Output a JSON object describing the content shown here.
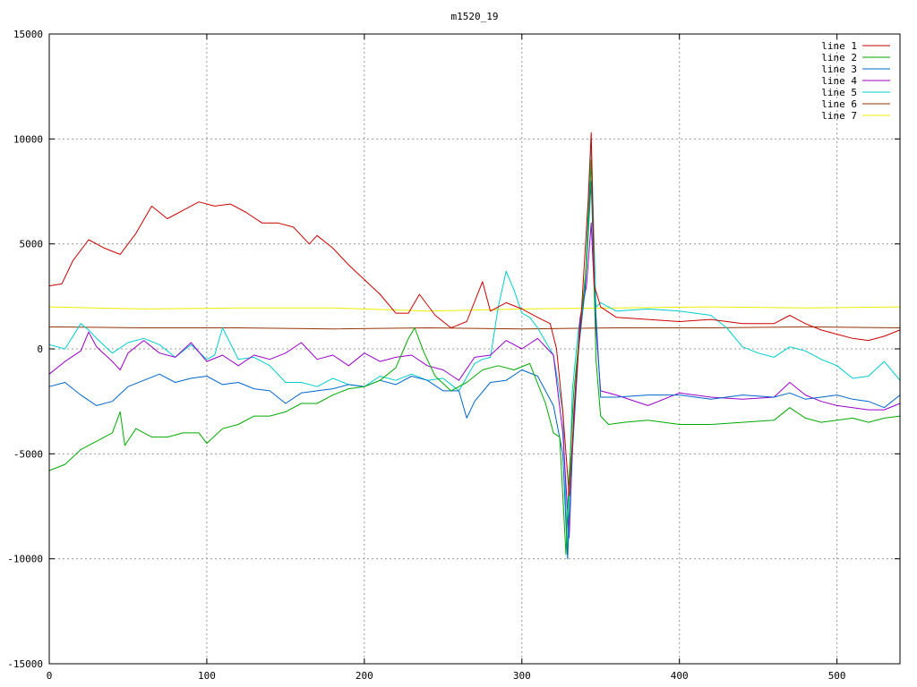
{
  "chart_data": {
    "type": "line",
    "title": "m1520_19",
    "xlabel": "",
    "ylabel": "",
    "xlim": [
      0,
      540
    ],
    "ylim": [
      -15000,
      15000
    ],
    "x_ticks": [
      0,
      100,
      200,
      300,
      400,
      500
    ],
    "y_ticks": [
      -15000,
      -10000,
      -5000,
      0,
      5000,
      10000,
      15000
    ],
    "x_tick_labels": [
      "0",
      "100",
      "200",
      "300",
      "400",
      "500"
    ],
    "y_tick_labels": [
      "-15000",
      "-10000",
      "-5000",
      "0",
      "5000",
      "10000",
      "15000"
    ],
    "grid": true,
    "legend_position": "top-right",
    "series": [
      {
        "name": "line 1",
        "color": "#cc0000",
        "x": [
          0,
          8,
          15,
          25,
          35,
          45,
          55,
          65,
          75,
          85,
          95,
          105,
          115,
          125,
          135,
          145,
          155,
          165,
          170,
          180,
          190,
          200,
          210,
          220,
          228,
          235,
          245,
          255,
          265,
          275,
          280,
          290,
          300,
          310,
          318,
          322,
          326,
          330,
          334,
          338,
          342,
          344,
          346,
          350,
          360,
          380,
          400,
          420,
          440,
          460,
          470,
          480,
          490,
          500,
          510,
          520,
          530,
          540
        ],
        "y": [
          3000,
          3100,
          4200,
          5200,
          4800,
          4500,
          5500,
          6800,
          6200,
          6600,
          7000,
          6800,
          6900,
          6500,
          6000,
          6000,
          5800,
          5000,
          5400,
          4800,
          4000,
          3300,
          2600,
          1700,
          1700,
          2600,
          1600,
          1000,
          1300,
          3200,
          1800,
          2200,
          1900,
          1500,
          1200,
          0,
          -3000,
          -7000,
          -2000,
          2000,
          7000,
          10300,
          3000,
          2000,
          1500,
          1400,
          1300,
          1400,
          1200,
          1200,
          1600,
          1200,
          900,
          700,
          500,
          400,
          600,
          900
        ]
      },
      {
        "name": "line 2",
        "color": "#00aa00",
        "x": [
          0,
          10,
          20,
          30,
          40,
          45,
          48,
          55,
          65,
          75,
          85,
          95,
          100,
          110,
          120,
          130,
          140,
          150,
          160,
          170,
          180,
          190,
          200,
          210,
          220,
          228,
          232,
          238,
          245,
          255,
          265,
          275,
          285,
          295,
          305,
          315,
          320,
          324,
          328,
          330,
          333,
          337,
          341,
          344,
          347,
          350,
          355,
          365,
          380,
          400,
          420,
          440,
          460,
          470,
          480,
          490,
          500,
          510,
          520,
          530,
          540
        ],
        "y": [
          -5800,
          -5500,
          -4800,
          -4400,
          -4000,
          -3000,
          -4600,
          -3800,
          -4200,
          -4200,
          -4000,
          -4000,
          -4500,
          -3800,
          -3600,
          -3200,
          -3200,
          -3000,
          -2600,
          -2600,
          -2200,
          -1900,
          -1800,
          -1500,
          -900,
          500,
          1000,
          -200,
          -1300,
          -2000,
          -1600,
          -1000,
          -800,
          -1000,
          -700,
          -2600,
          -4000,
          -4200,
          -9800,
          -6000,
          -2000,
          1000,
          4000,
          9000,
          -500,
          -3200,
          -3600,
          -3500,
          -3400,
          -3600,
          -3600,
          -3500,
          -3400,
          -2800,
          -3300,
          -3500,
          -3400,
          -3300,
          -3500,
          -3300,
          -3200
        ]
      },
      {
        "name": "line 3",
        "color": "#0066cc",
        "x": [
          0,
          10,
          20,
          30,
          40,
          50,
          60,
          70,
          80,
          90,
          100,
          110,
          120,
          130,
          140,
          150,
          160,
          170,
          180,
          190,
          200,
          210,
          220,
          230,
          240,
          250,
          260,
          265,
          270,
          280,
          290,
          300,
          310,
          320,
          326,
          329,
          332,
          336,
          340,
          344,
          346,
          350,
          360,
          380,
          400,
          420,
          440,
          460,
          470,
          480,
          490,
          500,
          510,
          520,
          530,
          540
        ],
        "y": [
          -1800,
          -1600,
          -2200,
          -2700,
          -2500,
          -1800,
          -1500,
          -1200,
          -1600,
          -1400,
          -1300,
          -1700,
          -1600,
          -1900,
          -2000,
          -2600,
          -2100,
          -2000,
          -1900,
          -1700,
          -1800,
          -1500,
          -1700,
          -1300,
          -1500,
          -2000,
          -2000,
          -3300,
          -2500,
          -1600,
          -1500,
          -1000,
          -1300,
          -2700,
          -5000,
          -10000,
          -5000,
          0,
          2700,
          8000,
          3000,
          -2300,
          -2300,
          -2200,
          -2200,
          -2400,
          -2200,
          -2300,
          -2100,
          -2400,
          -2300,
          -2200,
          -2400,
          -2500,
          -2800,
          -2200
        ]
      },
      {
        "name": "line 4",
        "color": "#9900cc",
        "x": [
          0,
          10,
          20,
          25,
          30,
          40,
          45,
          50,
          60,
          70,
          80,
          90,
          100,
          110,
          120,
          130,
          140,
          150,
          160,
          170,
          180,
          190,
          200,
          210,
          220,
          230,
          240,
          250,
          260,
          270,
          280,
          290,
          300,
          310,
          320,
          326,
          330,
          333,
          337,
          341,
          344,
          347,
          350,
          360,
          380,
          400,
          420,
          440,
          460,
          470,
          480,
          490,
          500,
          510,
          520,
          530,
          540
        ],
        "y": [
          -1200,
          -600,
          -100,
          800,
          100,
          -600,
          -1000,
          -200,
          400,
          -200,
          -400,
          300,
          -600,
          -300,
          -800,
          -300,
          -500,
          -200,
          300,
          -500,
          -300,
          -800,
          -200,
          -600,
          -400,
          -300,
          -800,
          -1000,
          -1500,
          -400,
          -300,
          400,
          0,
          500,
          -300,
          -4000,
          -9000,
          -3000,
          1500,
          3000,
          6000,
          1000,
          -2000,
          -2200,
          -2700,
          -2100,
          -2300,
          -2400,
          -2300,
          -1600,
          -2200,
          -2500,
          -2700,
          -2800,
          -2900,
          -2900,
          -2600
        ]
      },
      {
        "name": "line 5",
        "color": "#00cccc",
        "x": [
          0,
          10,
          20,
          25,
          30,
          40,
          50,
          60,
          70,
          80,
          90,
          100,
          105,
          110,
          120,
          130,
          140,
          150,
          160,
          170,
          180,
          190,
          200,
          210,
          220,
          230,
          240,
          250,
          260,
          270,
          275,
          280,
          285,
          290,
          295,
          300,
          305,
          310,
          320,
          326,
          329,
          332,
          336,
          340,
          344,
          347,
          350,
          360,
          380,
          400,
          410,
          420,
          430,
          440,
          450,
          460,
          470,
          480,
          490,
          500,
          510,
          520,
          530,
          540
        ],
        "y": [
          200,
          0,
          1200,
          900,
          500,
          -200,
          300,
          500,
          200,
          -400,
          200,
          -500,
          -300,
          1000,
          -500,
          -400,
          -800,
          -1600,
          -1600,
          -1800,
          -1400,
          -1700,
          -1800,
          -1300,
          -1500,
          -1200,
          -1500,
          -1400,
          -2000,
          -700,
          -500,
          -400,
          2000,
          3700,
          2800,
          1700,
          1500,
          1000,
          -300,
          -3000,
          -9700,
          -2000,
          1000,
          2700,
          10000,
          2000,
          2200,
          1800,
          1900,
          1800,
          1700,
          1600,
          1000,
          100,
          -200,
          -400,
          100,
          -100,
          -500,
          -800,
          -1400,
          -1300,
          -600,
          -1500
        ]
      },
      {
        "name": "line 6",
        "color": "#993300",
        "x": [
          0,
          60,
          120,
          180,
          240,
          300,
          360,
          420,
          480,
          540
        ],
        "y": [
          1050,
          1000,
          1000,
          950,
          1000,
          950,
          1000,
          1000,
          1050,
          1000
        ]
      },
      {
        "name": "line 7",
        "color": "#eeee00",
        "x": [
          0,
          60,
          120,
          180,
          240,
          300,
          360,
          420,
          480,
          540
        ],
        "y": [
          2000,
          1900,
          1950,
          1950,
          1800,
          1900,
          1950,
          2000,
          1950,
          2000
        ]
      }
    ]
  }
}
